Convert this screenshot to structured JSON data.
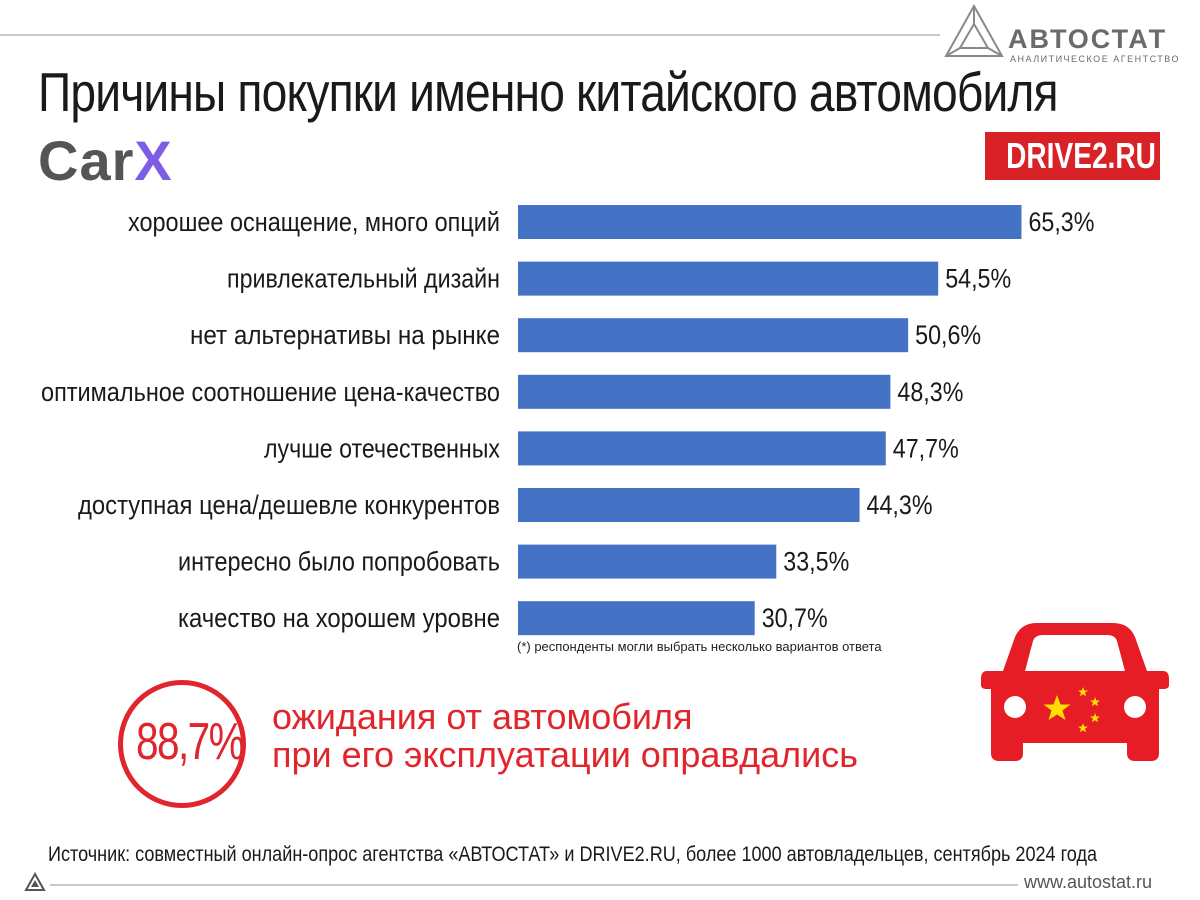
{
  "brand": {
    "name": "АВТОСТАТ",
    "subtitle": "АНАЛИТИЧЕСКОЕ АГЕНТСТВО",
    "site": "www.autostat.ru"
  },
  "title": "Причины покупки именно китайского автомобиля",
  "partners": {
    "carx": "Car",
    "carx_x": "X",
    "drive2": "DRIVE2.RU"
  },
  "chart_data": {
    "type": "bar",
    "orientation": "horizontal",
    "categories": [
      "хорошее оснащение, много опций",
      "привлекательный дизайн",
      "нет альтернативы на рынке",
      "оптимальное соотношение цена-качество",
      "лучше отечественных",
      "доступная цена/дешевле конкурентов",
      "интересно было попробовать",
      "качество на хорошем уровне"
    ],
    "values": [
      65.3,
      54.5,
      50.6,
      48.3,
      47.7,
      44.3,
      33.5,
      30.7
    ],
    "value_labels": [
      "65,3%",
      "54,5%",
      "50,6%",
      "48,3%",
      "47,7%",
      "44,3%",
      "33,5%",
      "30,7%"
    ],
    "unit": "%",
    "bar_color": "#4472c4",
    "footnote": "(*) респонденты могли выбрать несколько вариантов ответа"
  },
  "highlight": {
    "value": "88,7%",
    "line1": "ожидания от автомобиля",
    "line2": "при его эксплуатации оправдались",
    "color": "#e0252c"
  },
  "source": "Источник: совместный онлайн-опрос агентства «АВТОСТАТ» и DRIVE2.RU, более 1000 автовладельцев, сентябрь 2024 года"
}
